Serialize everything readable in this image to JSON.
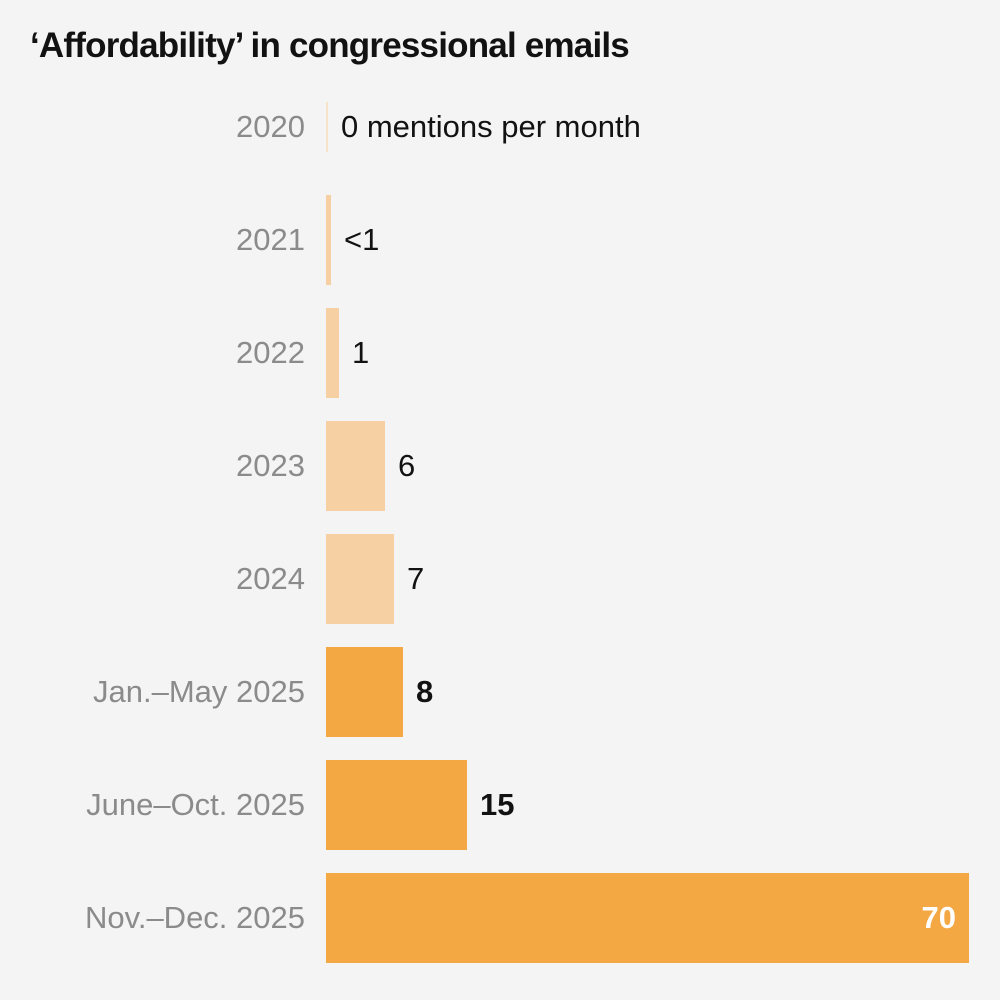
{
  "chart_data": {
    "type": "bar",
    "orientation": "horizontal",
    "title": "‘Affordability’ in congressional emails",
    "categories": [
      "2020",
      "2021",
      "2022",
      "2023",
      "2024",
      "Jan.–May 2025",
      "June–Oct. 2025",
      "Nov.–Dec. 2025"
    ],
    "values": [
      0,
      0.5,
      1,
      6,
      7,
      8,
      15,
      70
    ],
    "value_labels": [
      "0 mentions per month",
      "<1",
      "1",
      "6",
      "7",
      "8",
      "15",
      "70"
    ],
    "xlabel": "mentions per month",
    "ylabel": "",
    "xlim": [
      0,
      70
    ],
    "grid": false,
    "legend": "none",
    "rows": [
      {
        "category": "2020",
        "value": 0,
        "label": "0 mentions per month",
        "tone": "zero",
        "bold": false,
        "label_inside": false
      },
      {
        "category": "2021",
        "value": 0.5,
        "label": "<1",
        "tone": "light",
        "bold": false,
        "label_inside": false
      },
      {
        "category": "2022",
        "value": 1,
        "label": "1",
        "tone": "light",
        "bold": false,
        "label_inside": false
      },
      {
        "category": "2023",
        "value": 6,
        "label": "6",
        "tone": "light",
        "bold": false,
        "label_inside": false
      },
      {
        "category": "2024",
        "value": 7,
        "label": "7",
        "tone": "light",
        "bold": false,
        "label_inside": false
      },
      {
        "category": "Jan.–May 2025",
        "value": 8,
        "label": "8",
        "tone": "dark",
        "bold": true,
        "label_inside": false
      },
      {
        "category": "June–Oct. 2025",
        "value": 15,
        "label": "15",
        "tone": "dark",
        "bold": true,
        "label_inside": false
      },
      {
        "category": "Nov.–Dec. 2025",
        "value": 70,
        "label": "70",
        "tone": "dark",
        "bold": true,
        "label_inside": true
      }
    ]
  },
  "colors": {
    "background": "#f4f4f4",
    "bar_light": "#f6d0a2",
    "bar_dark": "#f3a843",
    "zero_tick": "#f6e3c9",
    "category_label": "#8b8b8b",
    "value_text": "#121212",
    "value_text_inside": "#ffffff",
    "title_text": "#121212"
  }
}
